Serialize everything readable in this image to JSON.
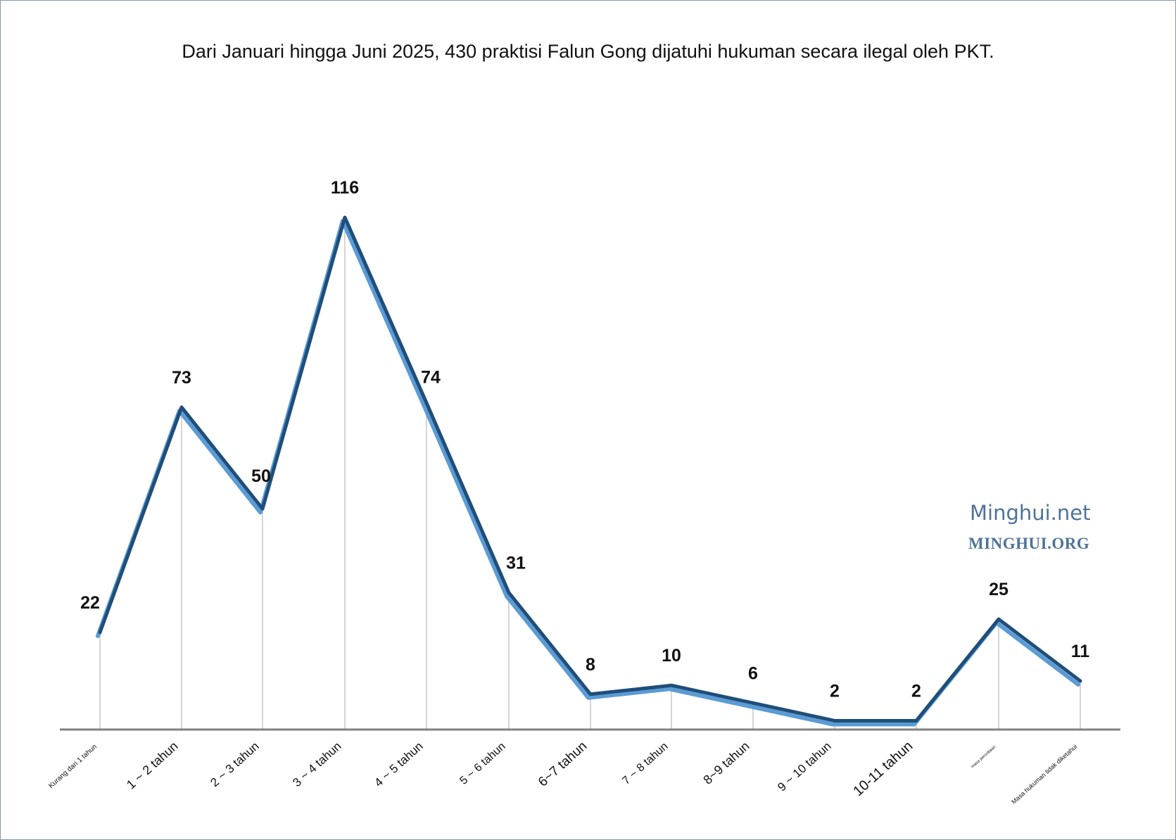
{
  "chart_data": {
    "type": "line",
    "title": "Dari Januari hingga Juni 2025, 430 praktisi Falun Gong dijatuhi hukuman secara ilegal oleh PKT.",
    "xlabel": "",
    "ylabel": "",
    "categories": [
      "Kurang dari 1 tahun",
      "1 ~ 2 tahun",
      "2 ~ 3 tahun",
      "3 ~ 4 tahun",
      "4 ~ 5 tahun",
      "5 ~ 6 tahun",
      "6~7 tahun",
      "7 ~ 8 tahun",
      "8~9 tahun",
      "9 ~ 10 tahun",
      "10-11 tahun",
      "masa percobaan",
      "Masa hukuman tidak diketahui"
    ],
    "values": [
      22,
      73,
      50,
      116,
      74,
      31,
      8,
      10,
      6,
      2,
      2,
      25,
      11
    ],
    "ylim": [
      0,
      116
    ],
    "grid": false,
    "legend": "none",
    "data_labels": true,
    "colors": {
      "line": "#1f4e79",
      "line_shadow": "#5b9bd5",
      "drop_lines": "#c8c8c8",
      "axis": "#808080"
    }
  },
  "watermark": {
    "line1": "Minghui.net",
    "line2": "MINGHUI.ORG",
    "color": "#4f7399"
  }
}
